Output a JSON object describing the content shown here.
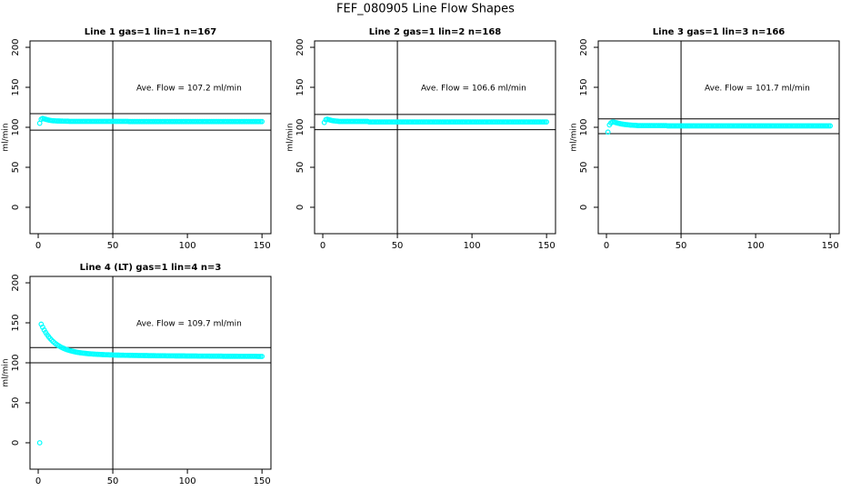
{
  "title": "FEF_080905 Line Flow Shapes",
  "chart_data": [
    {
      "type": "scatter",
      "title": "Line 1 gas=1 lin=1 n=167",
      "y_label": "ml/min",
      "annotation": "Ave. Flow = 107.2 ml/min",
      "color": "#00ffff",
      "xlim": [
        -5.5,
        156
      ],
      "ylim": [
        -33,
        208
      ],
      "xticks": [
        0,
        50,
        100,
        150
      ],
      "yticks": [
        0,
        50,
        100,
        150,
        200
      ],
      "hlines": [
        117,
        96.5
      ],
      "vline": 50,
      "x": [
        1,
        2,
        3,
        4,
        5,
        6,
        7,
        8,
        9,
        10,
        11,
        12,
        13,
        14,
        15,
        16,
        17,
        18,
        19,
        20,
        21,
        22,
        23,
        24,
        25,
        26,
        27,
        28,
        29,
        30,
        31,
        32,
        33,
        34,
        35,
        36,
        37,
        38,
        39,
        40,
        41,
        42,
        43,
        44,
        45,
        46,
        47,
        48,
        49,
        50,
        51,
        52,
        53,
        54,
        55,
        56,
        57,
        58,
        59,
        60,
        61,
        62,
        63,
        64,
        65,
        66,
        67,
        68,
        69,
        70,
        71,
        72,
        73,
        74,
        75,
        76,
        77,
        78,
        79,
        80,
        81,
        82,
        83,
        84,
        85,
        86,
        87,
        88,
        89,
        90,
        91,
        92,
        93,
        94,
        95,
        96,
        97,
        98,
        99,
        100,
        101,
        102,
        103,
        104,
        105,
        106,
        107,
        108,
        109,
        110,
        111,
        112,
        113,
        114,
        115,
        116,
        117,
        118,
        119,
        120,
        121,
        122,
        123,
        124,
        125,
        126,
        127,
        128,
        129,
        130,
        131,
        132,
        133,
        134,
        135,
        136,
        137,
        138,
        139,
        140,
        141,
        142,
        143,
        144,
        145,
        146,
        147,
        148,
        149,
        150
      ],
      "values": [
        105,
        110,
        111,
        110.5,
        110,
        109.5,
        109,
        108.7,
        108.4,
        108.2,
        108.1,
        108,
        107.9,
        107.9,
        107.8,
        107.8,
        107.7,
        107.7,
        107.6,
        107.6,
        107.4,
        107.4,
        107.4,
        107.4,
        107.4,
        107.4,
        107.4,
        107.4,
        107.4,
        107.4,
        107.4,
        107.4,
        107.4,
        107.4,
        107.4,
        107.4,
        107.4,
        107.4,
        107.4,
        107.4,
        107.4,
        107.4,
        107.4,
        107.4,
        107.4,
        107.4,
        107.4,
        107.4,
        107.4,
        107.4,
        107.4,
        107.4,
        107.4,
        107.4,
        107.4,
        107.4,
        107.4,
        107.4,
        107.4,
        107.4,
        107.2,
        107.2,
        107.2,
        107.2,
        107.2,
        107.2,
        107.2,
        107.2,
        107.2,
        107.2,
        107.2,
        107.2,
        107.2,
        107.2,
        107.2,
        107.2,
        107.2,
        107.2,
        107.2,
        107.2,
        107.2,
        107.2,
        107.2,
        107.2,
        107.2,
        107.2,
        107.2,
        107.2,
        107.2,
        107.2,
        107.2,
        107.2,
        107.2,
        107.2,
        107.2,
        107.2,
        107.2,
        107.2,
        107.2,
        107.2,
        107.2,
        107.2,
        107.2,
        107.2,
        107.2,
        107.2,
        107.2,
        107.2,
        107.2,
        107.2,
        107.2,
        107.2,
        107.2,
        107.2,
        107.2,
        107.2,
        107.2,
        107.2,
        107.2,
        107.2,
        107.2,
        107.2,
        107.2,
        107.2,
        107.2,
        107.2,
        107.2,
        107.2,
        107.2,
        107.2,
        107.2,
        107.2,
        107.2,
        107.2,
        107.2,
        107.2,
        107.2,
        107.2,
        107.2,
        107.2,
        107.2,
        107.2,
        107.2,
        107.2,
        107.2,
        107.2,
        107.2,
        107.2,
        107.2,
        107.2
      ]
    },
    {
      "type": "scatter",
      "title": "Line 2 gas=1 lin=2 n=168",
      "y_label": "ml/min",
      "annotation": "Ave. Flow = 106.6 ml/min",
      "color": "#00ffff",
      "xlim": [
        -5.5,
        156
      ],
      "ylim": [
        -33,
        208
      ],
      "xticks": [
        0,
        50,
        100,
        150
      ],
      "yticks": [
        0,
        50,
        100,
        150,
        200
      ],
      "hlines": [
        116,
        97
      ],
      "vline": 50,
      "x": [
        1,
        2,
        3,
        4,
        5,
        6,
        7,
        8,
        9,
        10,
        11,
        12,
        13,
        14,
        15,
        16,
        17,
        18,
        19,
        20,
        21,
        22,
        23,
        24,
        25,
        26,
        27,
        28,
        29,
        30,
        31,
        32,
        33,
        34,
        35,
        36,
        37,
        38,
        39,
        40,
        41,
        42,
        43,
        44,
        45,
        46,
        47,
        48,
        49,
        50,
        51,
        52,
        53,
        54,
        55,
        56,
        57,
        58,
        59,
        60,
        61,
        62,
        63,
        64,
        65,
        66,
        67,
        68,
        69,
        70,
        71,
        72,
        73,
        74,
        75,
        76,
        77,
        78,
        79,
        80,
        81,
        82,
        83,
        84,
        85,
        86,
        87,
        88,
        89,
        90,
        91,
        92,
        93,
        94,
        95,
        96,
        97,
        98,
        99,
        100,
        101,
        102,
        103,
        104,
        105,
        106,
        107,
        108,
        109,
        110,
        111,
        112,
        113,
        114,
        115,
        116,
        117,
        118,
        119,
        120,
        121,
        122,
        123,
        124,
        125,
        126,
        127,
        128,
        129,
        130,
        131,
        132,
        133,
        134,
        135,
        136,
        137,
        138,
        139,
        140,
        141,
        142,
        143,
        144,
        145,
        146,
        147,
        148,
        149,
        150
      ],
      "values": [
        106,
        109.5,
        110,
        109.5,
        109,
        108.5,
        108.2,
        108,
        107.8,
        107.6,
        107.3,
        107.3,
        107.3,
        107.3,
        107.3,
        107.3,
        107.3,
        107.3,
        107.3,
        107.3,
        107.3,
        107.3,
        107.3,
        107.3,
        107.3,
        107.3,
        107.3,
        107.3,
        107.3,
        107.3,
        106.7,
        106.7,
        106.7,
        106.7,
        106.7,
        106.7,
        106.7,
        106.7,
        106.7,
        106.7,
        106.7,
        106.7,
        106.7,
        106.7,
        106.7,
        106.7,
        106.7,
        106.7,
        106.7,
        106.7,
        106.7,
        106.7,
        106.7,
        106.7,
        106.7,
        106.7,
        106.7,
        106.7,
        106.7,
        106.7,
        106.7,
        106.7,
        106.7,
        106.7,
        106.7,
        106.7,
        106.7,
        106.7,
        106.7,
        106.7,
        106.7,
        106.7,
        106.7,
        106.7,
        106.7,
        106.7,
        106.7,
        106.7,
        106.7,
        106.7,
        106.7,
        106.7,
        106.7,
        106.7,
        106.7,
        106.7,
        106.7,
        106.7,
        106.7,
        106.7,
        106.7,
        106.7,
        106.7,
        106.7,
        106.7,
        106.7,
        106.7,
        106.7,
        106.7,
        106.7,
        106.7,
        106.7,
        106.7,
        106.7,
        106.7,
        106.7,
        106.7,
        106.7,
        106.7,
        106.7,
        106.7,
        106.7,
        106.7,
        106.7,
        106.7,
        106.7,
        106.7,
        106.7,
        106.7,
        106.7,
        106.7,
        106.7,
        106.7,
        106.7,
        106.7,
        106.7,
        106.7,
        106.7,
        106.7,
        106.7,
        106.7,
        106.7,
        106.7,
        106.7,
        106.7,
        106.7,
        106.7,
        106.7,
        106.7,
        106.7,
        106.7,
        106.7,
        106.7,
        106.7,
        106.7,
        106.7,
        106.7,
        106.7,
        106.7,
        106.7
      ]
    },
    {
      "type": "scatter",
      "title": "Line 3 gas=1 lin=3 n=166",
      "y_label": "ml/min",
      "annotation": "Ave. Flow = 101.7 ml/min",
      "color": "#00ffff",
      "xlim": [
        -5.5,
        156
      ],
      "ylim": [
        -33,
        208
      ],
      "xticks": [
        0,
        50,
        100,
        150
      ],
      "yticks": [
        0,
        50,
        100,
        150,
        200
      ],
      "hlines": [
        110.5,
        92
      ],
      "vline": 50,
      "x": [
        1,
        2,
        3,
        4,
        5,
        6,
        7,
        8,
        9,
        10,
        11,
        12,
        13,
        14,
        15,
        16,
        17,
        18,
        19,
        20,
        21,
        22,
        23,
        24,
        25,
        26,
        27,
        28,
        29,
        30,
        31,
        32,
        33,
        34,
        35,
        36,
        37,
        38,
        39,
        40,
        41,
        42,
        43,
        44,
        45,
        46,
        47,
        48,
        49,
        50,
        51,
        52,
        53,
        54,
        55,
        56,
        57,
        58,
        59,
        60,
        61,
        62,
        63,
        64,
        65,
        66,
        67,
        68,
        69,
        70,
        71,
        72,
        73,
        74,
        75,
        76,
        77,
        78,
        79,
        80,
        81,
        82,
        83,
        84,
        85,
        86,
        87,
        88,
        89,
        90,
        91,
        92,
        93,
        94,
        95,
        96,
        97,
        98,
        99,
        100,
        101,
        102,
        103,
        104,
        105,
        106,
        107,
        108,
        109,
        110,
        111,
        112,
        113,
        114,
        115,
        116,
        117,
        118,
        119,
        120,
        121,
        122,
        123,
        124,
        125,
        126,
        127,
        128,
        129,
        130,
        131,
        132,
        133,
        134,
        135,
        136,
        137,
        138,
        139,
        140,
        141,
        142,
        143,
        144,
        145,
        146,
        147,
        148,
        149,
        150
      ],
      "values": [
        94,
        103,
        105.5,
        106.5,
        106.5,
        106,
        105.5,
        105,
        104.6,
        104.2,
        103.9,
        103.6,
        103.4,
        103.2,
        103,
        102.8,
        102.7,
        102.6,
        102.5,
        102.4,
        102.1,
        102.1,
        102.1,
        102.1,
        102.1,
        102.1,
        102.1,
        102.1,
        102.1,
        102.1,
        102.1,
        102.1,
        102.1,
        102.1,
        102.1,
        102.1,
        102.1,
        102.1,
        102.1,
        102.1,
        101.8,
        101.8,
        101.8,
        101.8,
        101.8,
        101.8,
        101.8,
        101.8,
        101.8,
        101.8,
        101.8,
        101.8,
        101.8,
        101.8,
        101.8,
        101.8,
        101.8,
        101.8,
        101.8,
        101.8,
        101.8,
        101.8,
        101.8,
        101.8,
        101.8,
        101.8,
        101.8,
        101.8,
        101.8,
        101.8,
        101.8,
        101.8,
        101.8,
        101.8,
        101.8,
        101.8,
        101.8,
        101.8,
        101.8,
        101.8,
        101.8,
        101.8,
        101.8,
        101.8,
        101.8,
        101.8,
        101.8,
        101.8,
        101.8,
        101.8,
        101.8,
        101.8,
        101.8,
        101.8,
        101.8,
        101.8,
        101.8,
        101.8,
        101.8,
        101.8,
        101.8,
        101.8,
        101.8,
        101.8,
        101.8,
        101.8,
        101.8,
        101.8,
        101.8,
        101.8,
        101.8,
        101.8,
        101.8,
        101.8,
        101.8,
        101.8,
        101.8,
        101.8,
        101.8,
        101.8,
        101.8,
        101.8,
        101.8,
        101.8,
        101.8,
        101.8,
        101.8,
        101.8,
        101.8,
        101.8,
        101.8,
        101.8,
        101.8,
        101.8,
        101.8,
        101.8,
        101.8,
        101.8,
        101.8,
        101.8,
        101.8,
        101.8,
        101.8,
        101.8,
        101.8,
        101.8,
        101.8,
        101.8,
        101.8,
        101.8
      ]
    },
    {
      "type": "scatter",
      "title": "Line 4 (LT) gas=1 lin=4 n=3",
      "y_label": "ml/min",
      "annotation": "Ave. Flow = 109.7 ml/min",
      "color": "#00ffff",
      "xlim": [
        -5.5,
        156
      ],
      "ylim": [
        -33,
        208
      ],
      "xticks": [
        0,
        50,
        100,
        150
      ],
      "yticks": [
        0,
        50,
        100,
        150,
        200
      ],
      "hlines": [
        119,
        100
      ],
      "vline": 50,
      "x": [
        1,
        2,
        3,
        4,
        5,
        6,
        7,
        8,
        9,
        10,
        11,
        12,
        13,
        14,
        15,
        16,
        17,
        18,
        19,
        20,
        21,
        22,
        23,
        24,
        25,
        26,
        27,
        28,
        29,
        30,
        31,
        32,
        33,
        34,
        35,
        36,
        37,
        38,
        39,
        40,
        41,
        42,
        43,
        44,
        45,
        46,
        47,
        48,
        49,
        50,
        51,
        52,
        53,
        54,
        55,
        56,
        57,
        58,
        59,
        60,
        61,
        62,
        63,
        64,
        65,
        66,
        67,
        68,
        69,
        70,
        71,
        72,
        73,
        74,
        75,
        76,
        77,
        78,
        79,
        80,
        81,
        82,
        83,
        84,
        85,
        86,
        87,
        88,
        89,
        90,
        91,
        92,
        93,
        94,
        95,
        96,
        97,
        98,
        99,
        100,
        101,
        102,
        103,
        104,
        105,
        106,
        107,
        108,
        109,
        110,
        111,
        112,
        113,
        114,
        115,
        116,
        117,
        118,
        119,
        120,
        121,
        122,
        123,
        124,
        125,
        126,
        127,
        128,
        129,
        130,
        131,
        132,
        133,
        134,
        135,
        136,
        137,
        138,
        139,
        140,
        141,
        142,
        143,
        144,
        145,
        146,
        147,
        148,
        149,
        150
      ],
      "values": [
        0,
        148.3,
        144.5,
        141.0,
        137.9,
        135.1,
        132.6,
        130.4,
        128.3,
        126.5,
        124.9,
        123.4,
        122.1,
        121.0,
        119.9,
        118.9,
        118.1,
        117.3,
        116.5,
        116.0,
        115.4,
        114.9,
        114.4,
        114.0,
        113.6,
        113.2,
        112.9,
        112.6,
        112.4,
        112.1,
        111.9,
        111.7,
        111.5,
        111.3,
        111.2,
        111.1,
        110.9,
        110.8,
        110.7,
        110.6,
        110.5,
        110.4,
        110.3,
        110.2,
        110.1,
        110.1,
        110.0,
        109.9,
        109.9,
        109.8,
        109.7,
        109.7,
        109.6,
        109.6,
        109.5,
        109.5,
        109.5,
        109.4,
        109.4,
        109.4,
        109.3,
        109.3,
        109.3,
        109.2,
        109.2,
        109.2,
        109.1,
        109.1,
        109.1,
        109.1,
        109.0,
        109.0,
        109.0,
        108.9,
        108.9,
        108.9,
        108.9,
        108.9,
        108.8,
        108.8,
        108.8,
        108.8,
        108.8,
        108.8,
        108.8,
        108.7,
        108.7,
        108.7,
        108.7,
        108.7,
        108.7,
        108.6,
        108.6,
        108.6,
        108.6,
        108.6,
        108.6,
        108.6,
        108.5,
        108.5,
        108.5,
        108.5,
        108.5,
        108.5,
        108.5,
        108.5,
        108.4,
        108.4,
        108.4,
        108.4,
        108.4,
        108.4,
        108.4,
        108.4,
        108.3,
        108.3,
        108.3,
        108.3,
        108.3,
        108.3,
        108.3,
        108.3,
        108.3,
        108.2,
        108.2,
        108.2,
        108.2,
        108.2,
        108.2,
        108.2,
        108.2,
        108.2,
        108.2,
        108.1,
        108.1,
        108.1,
        108.1,
        108.1,
        108.1,
        108.1,
        108.1,
        108.1,
        108.1,
        108.1,
        108.1,
        108.1,
        108.0,
        108.0,
        108.0,
        108.0
      ]
    }
  ]
}
